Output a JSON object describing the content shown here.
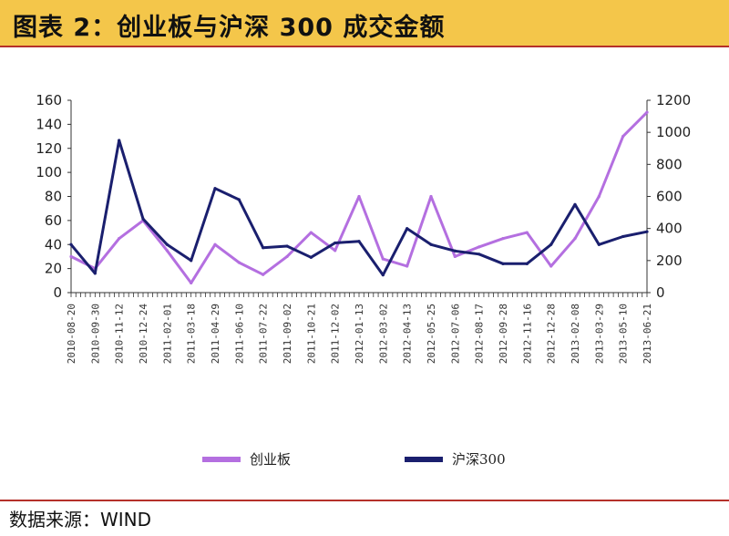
{
  "header": {
    "title": "图表 2：创业板与沪深 300 成交金额"
  },
  "footer": {
    "source": "数据来源：WIND"
  },
  "colors": {
    "header_bg": "#f4c64a",
    "rule": "#b5302a",
    "series_chinext": "#b46fe0",
    "series_hs300": "#1a1f6e"
  },
  "chart_data": {
    "type": "line",
    "title": "图表 2：创业板与沪深 300 成交金额",
    "x": [
      "2010-08-20",
      "2010-09-30",
      "2010-11-12",
      "2010-12-24",
      "2011-02-01",
      "2011-03-18",
      "2011-04-29",
      "2011-06-10",
      "2011-07-22",
      "2011-09-02",
      "2011-10-21",
      "2011-12-02",
      "2012-01-13",
      "2012-03-02",
      "2012-04-13",
      "2012-05-25",
      "2012-07-06",
      "2012-08-17",
      "2012-09-28",
      "2012-11-16",
      "2012-12-28",
      "2013-02-08",
      "2013-03-29",
      "2013-05-10",
      "2013-06-21"
    ],
    "series": [
      {
        "name": "创业板",
        "axis": "left",
        "values": [
          30,
          20,
          45,
          60,
          35,
          8,
          40,
          25,
          15,
          30,
          50,
          35,
          80,
          28,
          22,
          80,
          30,
          38,
          45,
          50,
          22,
          45,
          80,
          130,
          150
        ]
      },
      {
        "name": "沪深300",
        "axis": "right",
        "values": [
          300,
          120,
          950,
          460,
          300,
          200,
          650,
          580,
          280,
          290,
          220,
          310,
          320,
          110,
          400,
          300,
          260,
          240,
          180,
          180,
          300,
          550,
          300,
          350,
          380
        ]
      }
    ],
    "y_left": {
      "ylim": [
        0,
        160
      ],
      "ticks": [
        0,
        20,
        40,
        60,
        80,
        100,
        120,
        140,
        160
      ]
    },
    "y_right": {
      "ylim": [
        0,
        1200
      ],
      "ticks": [
        0,
        200,
        400,
        600,
        800,
        1000,
        1200
      ]
    },
    "legend": {
      "placement": "bottom"
    },
    "grid": false
  }
}
